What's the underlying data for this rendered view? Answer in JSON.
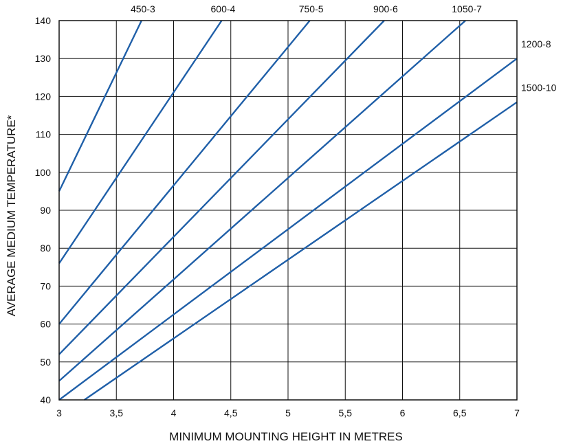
{
  "chart_data": {
    "type": "line",
    "xlabel": "MINIMUM MOUNTING HEIGHT IN METRES",
    "ylabel": "AVERAGE MEDIUM TEMPERATURE*",
    "xlim": [
      3,
      7
    ],
    "ylim": [
      40,
      140
    ],
    "x_ticks": [
      "3",
      "3,5",
      "4",
      "4,5",
      "5",
      "5,5",
      "6",
      "6,5",
      "7"
    ],
    "y_ticks": [
      "40",
      "50",
      "60",
      "70",
      "80",
      "90",
      "100",
      "110",
      "120",
      "130",
      "140"
    ],
    "grid": true,
    "line_color": "#1f5fa8",
    "series": [
      {
        "name": "450-3",
        "x": [
          3.0,
          3.72
        ],
        "y": [
          95,
          140
        ]
      },
      {
        "name": "600-4",
        "x": [
          3.0,
          4.42
        ],
        "y": [
          76,
          140
        ]
      },
      {
        "name": "750-5",
        "x": [
          3.0,
          5.19
        ],
        "y": [
          60,
          140
        ]
      },
      {
        "name": "900-6",
        "x": [
          3.0,
          5.84
        ],
        "y": [
          52,
          140
        ]
      },
      {
        "name": "1050-7",
        "x": [
          3.0,
          6.55
        ],
        "y": [
          45,
          140
        ]
      },
      {
        "name": "1200-8",
        "x": [
          3.0,
          7.0
        ],
        "y": [
          40,
          130
        ]
      },
      {
        "name": "1500-10",
        "x": [
          3.22,
          7.0
        ],
        "y": [
          40,
          118.5
        ]
      }
    ]
  }
}
